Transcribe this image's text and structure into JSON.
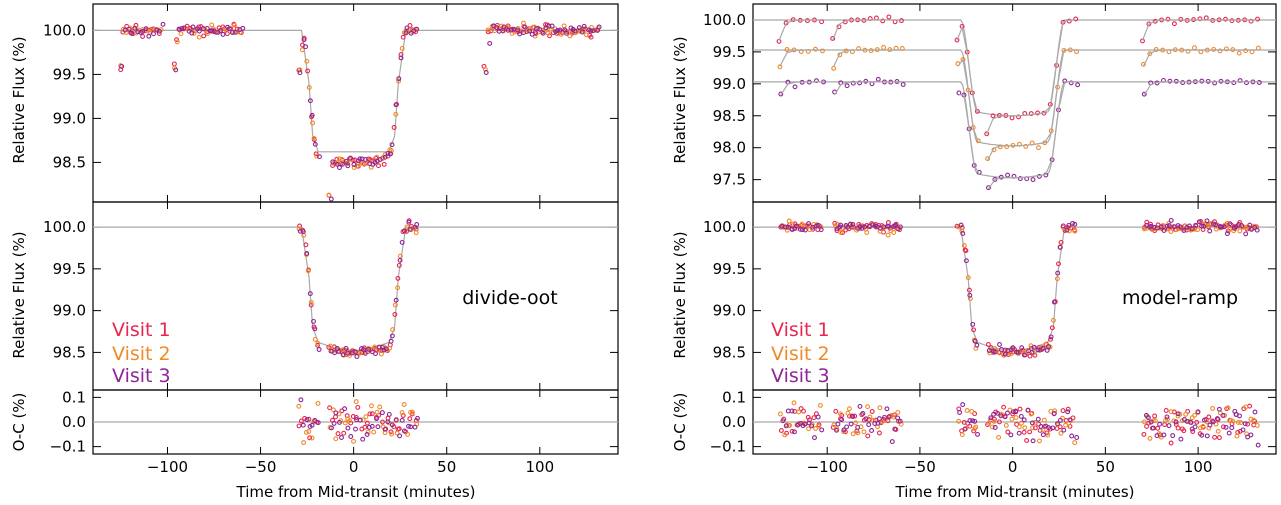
{
  "colors": {
    "visit1": "#e8274f",
    "visit2": "#f08a2a",
    "visit3": "#8e2596",
    "model": "#a9a9a9",
    "axis": "#000000"
  },
  "figure": {
    "xlabel": "Time from Mid-transit (minutes)",
    "ylabel_flux": "Relative Flux (%)",
    "ylabel_resid": "O-C (%)",
    "visit_labels": [
      "Visit  1",
      "Visit  2",
      "Visit  3"
    ]
  },
  "chart_data": [
    {
      "id": "left-top",
      "type": "scatter",
      "description": "Raw light curves, all three visits overlaid",
      "xlim": [
        -140,
        142
      ],
      "ylim": [
        98.05,
        100.3
      ],
      "xticks": [
        -100,
        -50,
        0,
        50,
        100
      ],
      "yticks": [
        98.5,
        99.0,
        99.5,
        100.0
      ],
      "show_xtick_labels": false,
      "model": {
        "x": [
          -140,
          -28,
          -24,
          -22,
          -19,
          19,
          22,
          24,
          28,
          142
        ],
        "y": [
          100.0,
          100.0,
          99.4,
          98.8,
          98.62,
          98.62,
          98.8,
          99.4,
          100.0,
          100.0
        ]
      }
    },
    {
      "id": "left-mid",
      "type": "scatter",
      "annotation": "divide-oot",
      "xlim": [
        -140,
        142
      ],
      "ylim": [
        98.05,
        100.3
      ],
      "xticks": [
        -100,
        -50,
        0,
        50,
        100
      ],
      "yticks": [
        98.5,
        99.0,
        99.5,
        100.0
      ],
      "show_xtick_labels": false,
      "model": {
        "x": [
          -140,
          -28,
          -24,
          -22,
          -19,
          -10,
          0,
          10,
          19,
          22,
          24,
          28,
          142
        ],
        "y": [
          100.0,
          100.0,
          99.4,
          98.8,
          98.62,
          98.55,
          98.52,
          98.55,
          98.62,
          98.8,
          99.4,
          100.0,
          100.0
        ]
      }
    },
    {
      "id": "left-resid",
      "type": "scatter",
      "xlim": [
        -140,
        142
      ],
      "ylim": [
        -0.13,
        0.13
      ],
      "xticks": [
        -100,
        -50,
        0,
        50,
        100
      ],
      "yticks": [
        -0.1,
        0.0,
        0.1
      ],
      "show_xtick_labels": true
    },
    {
      "id": "right-top",
      "type": "scatter",
      "description": "Raw light curves with ramp model, visits offset vertically",
      "xlim": [
        -140,
        142
      ],
      "ylim": [
        97.15,
        100.25
      ],
      "xticks": [
        -100,
        -50,
        0,
        50,
        100
      ],
      "yticks": [
        97.5,
        98.0,
        98.5,
        99.0,
        99.5,
        100.0
      ],
      "show_xtick_labels": false
    },
    {
      "id": "right-mid",
      "type": "scatter",
      "annotation": "model-ramp",
      "xlim": [
        -140,
        142
      ],
      "ylim": [
        98.05,
        100.3
      ],
      "xticks": [
        -100,
        -50,
        0,
        50,
        100
      ],
      "yticks": [
        98.5,
        99.0,
        99.5,
        100.0
      ],
      "show_xtick_labels": false,
      "model": {
        "x": [
          -140,
          -28,
          -24,
          -22,
          -19,
          -10,
          0,
          10,
          19,
          22,
          24,
          28,
          142
        ],
        "y": [
          100.0,
          100.0,
          99.4,
          98.8,
          98.62,
          98.55,
          98.52,
          98.55,
          98.62,
          98.8,
          99.4,
          100.0,
          100.0
        ]
      }
    },
    {
      "id": "right-resid",
      "type": "scatter",
      "xlim": [
        -140,
        142
      ],
      "ylim": [
        -0.13,
        0.13
      ],
      "xticks": [
        -100,
        -50,
        0,
        50,
        100
      ],
      "yticks": [
        -0.1,
        0.0,
        0.1
      ],
      "show_xtick_labels": true
    }
  ]
}
